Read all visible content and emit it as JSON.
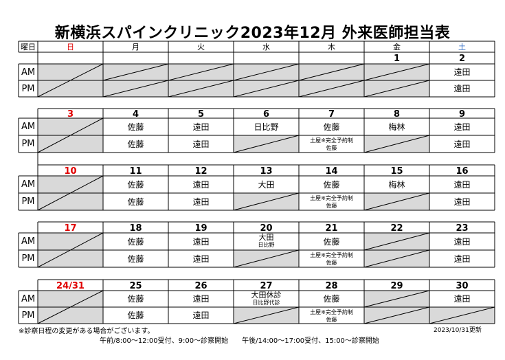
{
  "title": "新横浜スパインクリニック2023年12月 外来医師担当表",
  "header": {
    "corner": "曜日",
    "days": [
      "日",
      "月",
      "火",
      "水",
      "木",
      "金",
      "土"
    ],
    "day_colors": [
      "#e00000",
      "#000000",
      "#000000",
      "#000000",
      "#000000",
      "#000000",
      "#1f5fbf"
    ]
  },
  "period_labels": {
    "am": "AM",
    "pm": "PM"
  },
  "holiday_color": "#e00000",
  "weeks": [
    {
      "dates": [
        "",
        "",
        "",
        "",
        "",
        "1",
        "2"
      ],
      "am": [
        null,
        null,
        null,
        null,
        null,
        null,
        "遠田"
      ],
      "pm": [
        null,
        null,
        null,
        null,
        null,
        null,
        "遠田"
      ]
    },
    {
      "dates": [
        "3",
        "4",
        "5",
        "6",
        "7",
        "8",
        "9"
      ],
      "am": [
        null,
        "佐藤",
        "遠田",
        "日比野",
        "佐藤",
        "梅林",
        "遠田"
      ],
      "pm": [
        null,
        "佐藤",
        "遠田",
        null,
        "土屋※完全予約制|佐藤",
        null,
        "遠田"
      ]
    },
    {
      "dates": [
        "10",
        "11",
        "12",
        "13",
        "14",
        "15",
        "16"
      ],
      "am": [
        null,
        "佐藤",
        "遠田",
        "大田",
        "佐藤",
        "梅林",
        "遠田"
      ],
      "pm": [
        null,
        "佐藤",
        "遠田",
        null,
        "土屋※完全予約制|佐藤",
        null,
        "遠田"
      ]
    },
    {
      "dates": [
        "17",
        "18",
        "19",
        "20",
        "21",
        "22",
        "23"
      ],
      "am": [
        null,
        "佐藤",
        "遠田",
        "大田|日比野",
        "佐藤",
        null,
        "遠田"
      ],
      "pm": [
        null,
        "佐藤",
        "遠田",
        null,
        "土屋※完全予約制|佐藤",
        null,
        "遠田"
      ]
    },
    {
      "dates": [
        "24/31",
        "25",
        "26",
        "27",
        "28",
        "29",
        "30"
      ],
      "am": [
        null,
        "佐藤",
        "遠田",
        "大田休診|日比野代診",
        "佐藤",
        null,
        "遠田"
      ],
      "pm": [
        null,
        "佐藤",
        "遠田",
        null,
        "土屋※完全予約制|佐藤",
        null,
        null
      ]
    }
  ],
  "footer": {
    "note": "※診察日程の変更がある場合がございます。",
    "hours": "午前/8:00～12:00受付、9:00～診察開始　　午後/14:00～17:00受付、15:00～診察開始",
    "updated": "2023/10/31更新"
  }
}
